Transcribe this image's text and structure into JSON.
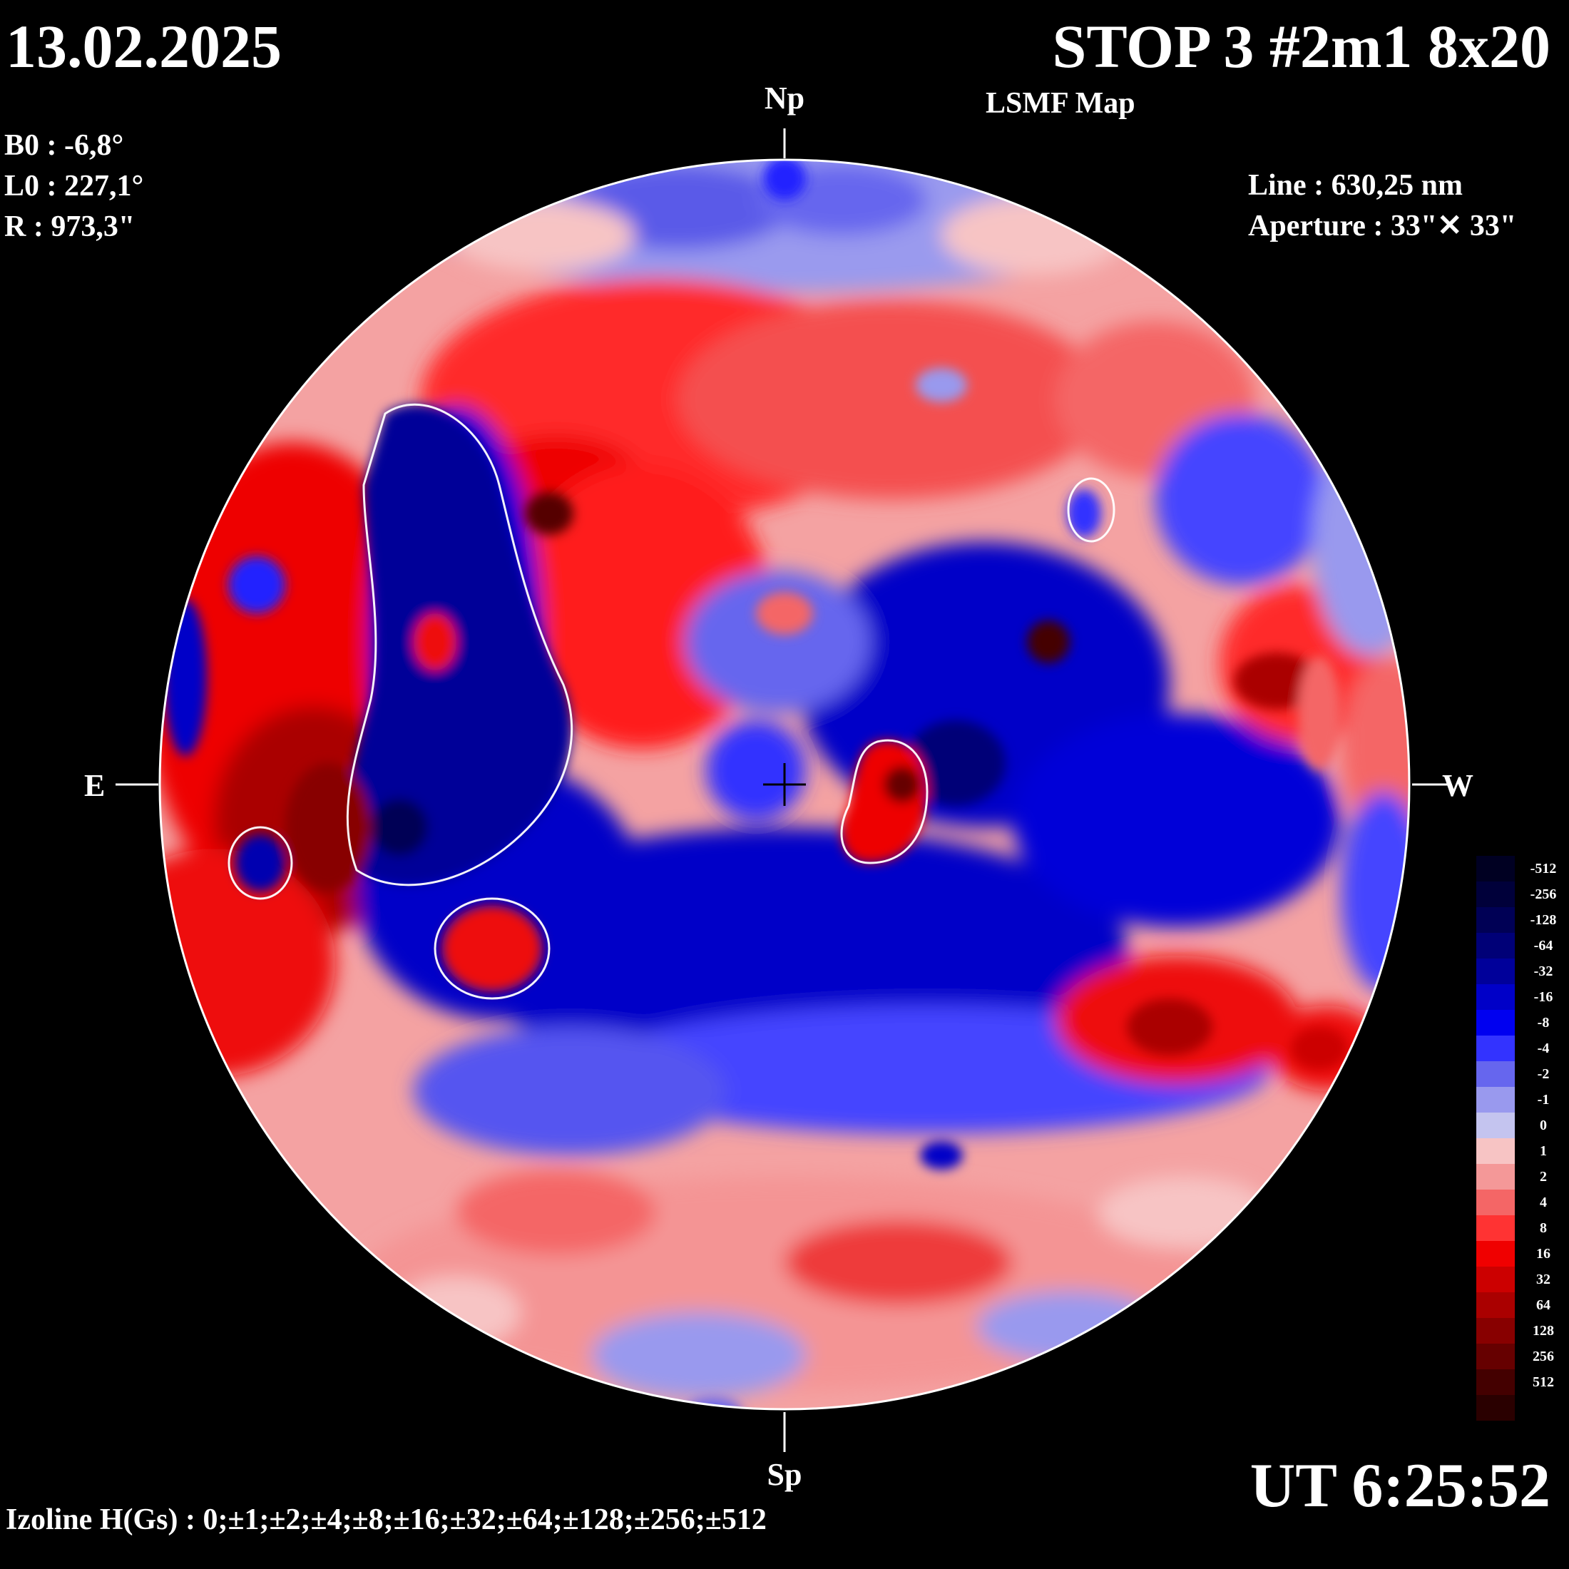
{
  "header": {
    "date": "13.02.2025",
    "title": "STOP 3 #2m1 8x20",
    "subtitle": "LSMF  Map"
  },
  "params": [
    "B0 : -6,8°",
    "L0 : 227,1°",
    "R  : 973,3\""
  ],
  "observation": [
    "Line :  630,25 nm",
    "Aperture : 33\"✕ 33\""
  ],
  "orientation": {
    "north": "Np",
    "south": "Sp",
    "east": "E",
    "west": "W"
  },
  "footer": {
    "time": "UT 6:25:52",
    "izoline": "Izoline H(Gs) : 0;±1;±2;±4;±8;±16;±32;±64;±128;±256;±512"
  },
  "colorbar": [
    {
      "label": "-512",
      "color": "#000022"
    },
    {
      "label": "-256",
      "color": "#00003a"
    },
    {
      "label": "-128",
      "color": "#000055"
    },
    {
      "label": "-64",
      "color": "#000077"
    },
    {
      "label": "-32",
      "color": "#00009a"
    },
    {
      "label": "-16",
      "color": "#0000c8"
    },
    {
      "label": "-8",
      "color": "#0000f0"
    },
    {
      "label": "-4",
      "color": "#3333ff"
    },
    {
      "label": "-2",
      "color": "#6666ee"
    },
    {
      "label": "-1",
      "color": "#9999ee"
    },
    {
      "label": "0",
      "color": "#c4c4ef"
    },
    {
      "label": "1",
      "color": "#f7c4c4"
    },
    {
      "label": "2",
      "color": "#f49898"
    },
    {
      "label": "4",
      "color": "#f46666"
    },
    {
      "label": "8",
      "color": "#ff3333"
    },
    {
      "label": "16",
      "color": "#f00000"
    },
    {
      "label": "32",
      "color": "#cc0000"
    },
    {
      "label": "64",
      "color": "#aa0000"
    },
    {
      "label": "128",
      "color": "#880000"
    },
    {
      "label": "256",
      "color": "#660000"
    },
    {
      "label": "512",
      "color": "#440000"
    },
    {
      "label": "",
      "color": "#2a0000"
    }
  ]
}
